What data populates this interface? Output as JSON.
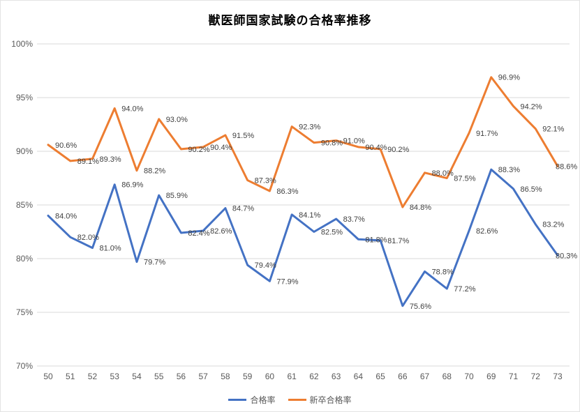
{
  "chart_data": {
    "type": "line",
    "title": "獣医師国家試験の合格率推移",
    "categories": [
      "50",
      "51",
      "52",
      "53",
      "54",
      "55",
      "56",
      "57",
      "58",
      "59",
      "60",
      "61",
      "62",
      "63",
      "64",
      "65",
      "66",
      "67",
      "68",
      "70",
      "69",
      "71",
      "72",
      "73"
    ],
    "series": [
      {
        "name": "合格率",
        "color": "#4472C4",
        "values": [
          84.0,
          82.0,
          81.0,
          86.9,
          79.7,
          85.9,
          82.4,
          82.6,
          84.7,
          79.4,
          77.9,
          84.1,
          82.5,
          83.7,
          81.8,
          81.7,
          75.6,
          78.8,
          77.2,
          82.6,
          88.3,
          86.5,
          83.2,
          80.3
        ]
      },
      {
        "name": "新卒合格率",
        "color": "#ED7D31",
        "values": [
          90.6,
          89.1,
          89.3,
          94.0,
          88.2,
          93.0,
          90.2,
          90.4,
          91.5,
          87.3,
          86.3,
          92.3,
          90.8,
          91.0,
          90.4,
          90.2,
          84.8,
          88.0,
          87.5,
          91.7,
          96.9,
          94.2,
          92.1,
          88.6
        ]
      }
    ],
    "xlabel": "",
    "ylabel": "",
    "ylim": [
      70,
      100
    ],
    "y_step": 5,
    "y_tick_labels": [
      "70%",
      "75%",
      "80%",
      "85%",
      "90%",
      "95%",
      "100%"
    ],
    "data_label_suffix": "%",
    "data_label_decimals": 1,
    "grid": true,
    "legend_position": "bottom"
  },
  "colors": {
    "gridline": "#D9D9D9",
    "tick_label": "#595959",
    "data_label": "#404040",
    "title": "#000000",
    "background": "#FFFFFF"
  }
}
